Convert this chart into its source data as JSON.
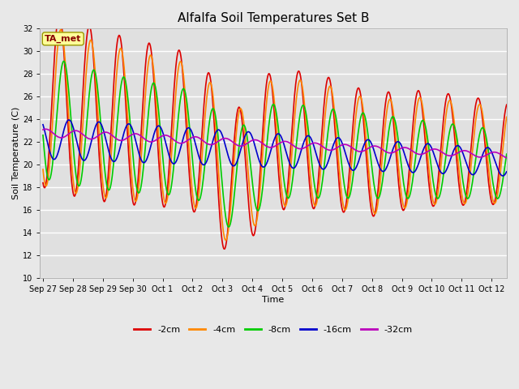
{
  "title": "Alfalfa Soil Temperatures Set B",
  "xlabel": "Time",
  "ylabel": "Soil Temperature (C)",
  "ylim": [
    10,
    32
  ],
  "background_color": "#e8e8e8",
  "plot_bg_color": "#e0e0e0",
  "grid_color": "#ffffff",
  "annotation_text": "TA_met",
  "annotation_bg": "#ffff99",
  "annotation_border": "#999900",
  "annotation_text_color": "#880000",
  "tick_labels": [
    "Sep 27",
    "Sep 28",
    "Sep 29",
    "Sep 30",
    "Oct 1",
    "Oct 2",
    "Oct 3",
    "Oct 4",
    "Oct 5",
    "Oct 6",
    "Oct 7",
    "Oct 8",
    "Oct 9",
    "Oct 10",
    "Oct 11",
    "Oct 12"
  ],
  "series": [
    {
      "label": "-2cm",
      "color": "#dd0000",
      "lw": 1.2
    },
    {
      "label": "-4cm",
      "color": "#ff8800",
      "lw": 1.2
    },
    {
      "label": "-8cm",
      "color": "#00cc00",
      "lw": 1.2
    },
    {
      "label": "-16cm",
      "color": "#0000cc",
      "lw": 1.2
    },
    {
      "label": "-32cm",
      "color": "#bb00bb",
      "lw": 1.2
    }
  ]
}
